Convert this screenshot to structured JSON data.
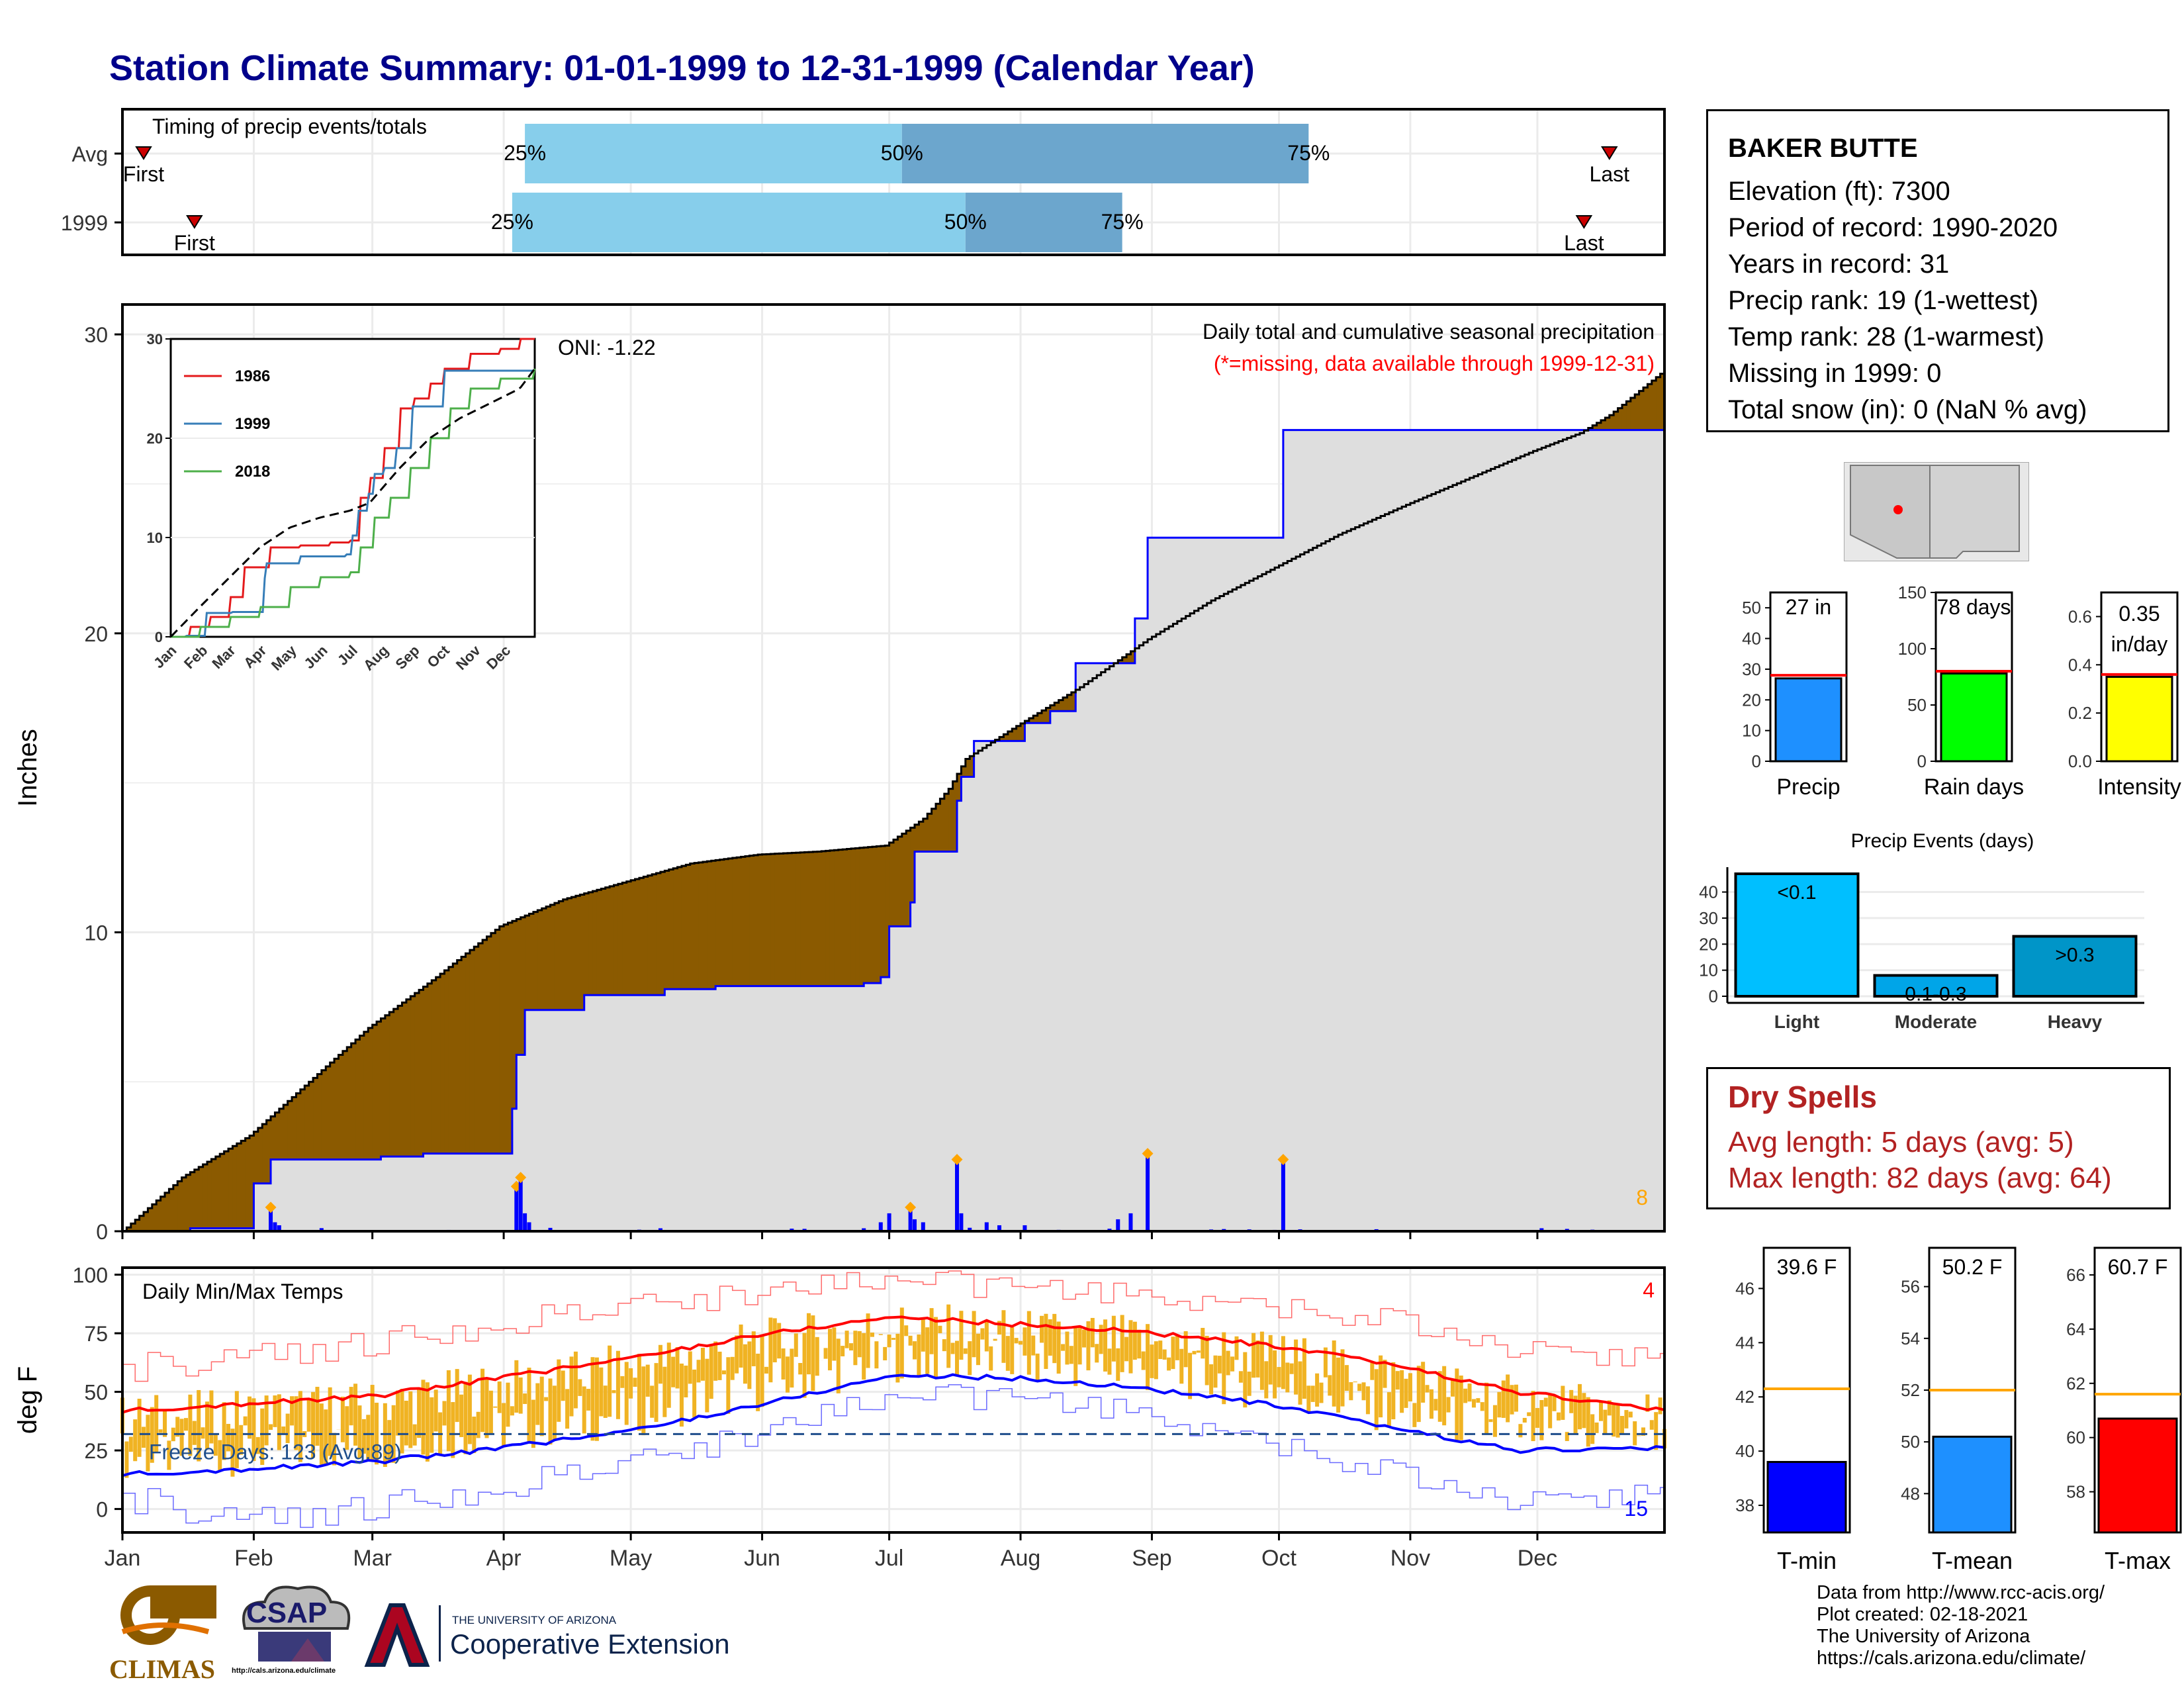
{
  "title": "Station Climate Summary: 01-01-1999 to 12-31-1999 (Calendar Year)",
  "timing_panel": {
    "title": "Timing of precip events/totals",
    "rows": [
      {
        "label": "Avg",
        "first_label": "First",
        "last_label": "Last",
        "first_doy": 6,
        "last_doy": 352,
        "p25_label": "25%",
        "p50_label": "50%",
        "p75_label": "75%",
        "p25_doy": 96,
        "p50_doy": 185,
        "p75_doy": 281
      },
      {
        "label": "1999",
        "first_label": "First",
        "last_label": "Last",
        "first_doy": 18,
        "last_doy": 346,
        "p25_label": "25%",
        "p50_label": "50%",
        "p75_label": "75%",
        "p25_doy": 93,
        "p50_doy": 200,
        "p75_doy": 237
      }
    ]
  },
  "precip_panel": {
    "ylabel": "Inches",
    "oni_label": "ONI: -1.22",
    "note_line1": "Daily total and cumulative seasonal precipitation",
    "note_line2": "(*=missing, data available through 1999-12-31)",
    "corner_count": "8",
    "yticks": [
      "0",
      "10",
      "20",
      "30"
    ]
  },
  "inset": {
    "yticks": [
      "0",
      "10",
      "20",
      "30"
    ],
    "xticks": [
      "Jan",
      "Feb",
      "Mar",
      "Apr",
      "May",
      "Jun",
      "Jul",
      "Aug",
      "Sep",
      "Oct",
      "Nov",
      "Dec"
    ],
    "legend": [
      {
        "label": "1986",
        "color": "#E41A1C"
      },
      {
        "label": "1999",
        "color": "#377EB8"
      },
      {
        "label": "2018",
        "color": "#4DAF4A"
      }
    ]
  },
  "temp_panel": {
    "ylabel": "deg F",
    "title": "Daily Min/Max Temps",
    "freeze_label": "Freeze Days: 123 (Avg:89)",
    "count_top": "4",
    "count_bottom": "15",
    "yticks": [
      "0",
      "25",
      "50",
      "75",
      "100"
    ]
  },
  "month_labels": [
    "Jan",
    "Feb",
    "Mar",
    "Apr",
    "May",
    "Jun",
    "Jul",
    "Aug",
    "Sep",
    "Oct",
    "Nov",
    "Dec"
  ],
  "station": {
    "name": "BAKER BUTTE",
    "lines": [
      "Elevation (ft): 7300",
      "Period of record: 1990-2020",
      "Years in record: 31",
      "Precip rank: 19 (1-wettest)",
      "Temp rank: 28 (1-warmest)",
      "Missing in 1999: 0",
      "Total snow (in): 0 (NaN % avg)"
    ]
  },
  "summary_bars": [
    {
      "label": "Precip",
      "value_text": "27 in",
      "value": 27,
      "avg": 28,
      "ymax": 55,
      "yticks": [
        "0",
        "10",
        "20",
        "30",
        "40",
        "50"
      ],
      "tickvals": [
        0,
        10,
        20,
        30,
        40,
        50
      ],
      "color": "#1E90FF"
    },
    {
      "label": "Rain days",
      "value_text": "78 days",
      "value": 78,
      "avg": 80,
      "ymax": 150,
      "yticks": [
        "0",
        "50",
        "100",
        "150"
      ],
      "tickvals": [
        0,
        50,
        100,
        150
      ],
      "color": "#00FF00"
    },
    {
      "label": "Intensity",
      "value_text": "0.35 in/day",
      "value": 0.35,
      "avg": 0.36,
      "ymax": 0.7,
      "yticks": [
        "0.0",
        "0.2",
        "0.4",
        "0.6"
      ],
      "tickvals": [
        0,
        0.2,
        0.4,
        0.6
      ],
      "color": "#FFFF00"
    }
  ],
  "precip_events": {
    "title": "Precip Events (days)",
    "yticks": [
      "0",
      "10",
      "20",
      "30",
      "40"
    ],
    "bars": [
      {
        "category": "Light",
        "label": "<0.1",
        "value": 47,
        "color": "#00BFFF"
      },
      {
        "category": "Moderate",
        "label": "0.1-0.3",
        "value": 8,
        "color": "#00A5E8"
      },
      {
        "category": "Heavy",
        "label": ">0.3",
        "value": 23,
        "color": "#0095C8"
      }
    ]
  },
  "dry_spells": {
    "title": "Dry Spells",
    "avg_line": "Avg length: 5 days (avg: 5)",
    "max_line": "Max length: 82 days (avg: 64)"
  },
  "temp_bars": [
    {
      "label": "T-min",
      "value_text": "39.6 F",
      "value": 39.6,
      "avg": 42.3,
      "ymin": 37,
      "ymax": 47.5,
      "yticks": [
        "38",
        "40",
        "42",
        "44",
        "46"
      ],
      "tickvals": [
        38,
        40,
        42,
        44,
        46
      ],
      "color": "#0000FF"
    },
    {
      "label": "T-mean",
      "value_text": "50.2 F",
      "value": 50.2,
      "avg": 52.0,
      "ymin": 46.5,
      "ymax": 57.5,
      "yticks": [
        "48",
        "50",
        "52",
        "54",
        "56"
      ],
      "tickvals": [
        48,
        50,
        52,
        54,
        56
      ],
      "color": "#1E90FF"
    },
    {
      "label": "T-max",
      "value_text": "60.7 F",
      "value": 60.7,
      "avg": 61.6,
      "ymin": 56.5,
      "ymax": 67,
      "yticks": [
        "58",
        "60",
        "62",
        "64",
        "66"
      ],
      "tickvals": [
        58,
        60,
        62,
        64,
        66
      ],
      "color": "#FF0000"
    }
  ],
  "logos": {
    "climas": "CLIMAS",
    "csap": "CSAP",
    "csap_url": "http://cals.arizona.edu/climate",
    "ua_small": "THE UNIVERSITY OF ARIZONA",
    "ua_big": "Cooperative Extension"
  },
  "credits": [
    "Data from http://www.rcc-acis.org/",
    "Plot created: 02-18-2021",
    "The University of Arizona",
    "https://cals.arizona.edu/climate/"
  ],
  "chart_data": [
    {
      "type": "area",
      "title": "Daily total and cumulative seasonal precipitation",
      "ylabel": "Inches",
      "ylim": [
        0,
        31
      ],
      "x": "day of year",
      "series": [
        {
          "name": "",
          "kind": "cumulative average",
          "x": [
            1,
            15,
            31,
            45,
            59,
            75,
            90,
            105,
            120,
            135,
            151,
            165,
            181,
            190,
            196,
            200,
            212,
            227,
            243,
            258,
            273,
            288,
            304,
            319,
            334,
            345,
            352,
            365
          ],
          "y": [
            0,
            1.8,
            3.2,
            5,
            6.8,
            8.5,
            10.2,
            11.1,
            11.7,
            12.3,
            12.6,
            12.7,
            12.9,
            13.8,
            14.8,
            15.8,
            16.9,
            18.2,
            19.8,
            21.1,
            22.2,
            23.3,
            24.3,
            25.2,
            26.1,
            26.7,
            27.3,
            28.8
          ]
        },
        {
          "name": "",
          "kind": "cumulative observed",
          "x": [
            1,
            17,
            32,
            36,
            62,
            72,
            93,
            94,
            96,
            110,
            129,
            141,
            176,
            180,
            182,
            187,
            188,
            198,
            199,
            202,
            214,
            220,
            226,
            240,
            243,
            275,
            342,
            365
          ],
          "y": [
            0,
            0.1,
            1.6,
            2.4,
            2.5,
            2.6,
            4.1,
            5.9,
            7.4,
            7.9,
            8.1,
            8.2,
            8.3,
            8.5,
            10.2,
            11.0,
            12.7,
            14.4,
            15.2,
            16.4,
            17.0,
            17.4,
            19.0,
            20.5,
            23.2,
            26.8,
            26.8,
            26.8
          ]
        },
        {
          "name": "",
          "kind": "daily totals",
          "x": [
            36,
            37,
            38,
            94,
            95,
            96,
            97,
            128,
            176,
            180,
            182,
            187,
            188,
            190,
            198,
            199,
            205,
            208,
            214,
            236,
            239,
            243,
            275
          ],
          "y": [
            0.8,
            0.3,
            0.2,
            1.5,
            1.8,
            0.6,
            0.3,
            0.1,
            0.1,
            0.3,
            0.6,
            0.8,
            0.4,
            0.3,
            2.4,
            0.6,
            0.3,
            0.2,
            0.2,
            0.4,
            0.6,
            2.6,
            2.4
          ]
        }
      ]
    },
    {
      "type": "line",
      "title": "",
      "ylim": [
        0,
        30
      ],
      "xticks": [
        "Jan",
        "Feb",
        "Mar",
        "Apr",
        "May",
        "Jun",
        "Jul",
        "Aug",
        "Sep",
        "Oct",
        "Nov",
        "Dec"
      ],
      "series": [
        {
          "name": "1986",
          "x": [
            1,
            20,
            40,
            60,
            75,
            100,
            130,
            160,
            180,
            190,
            200,
            215,
            230,
            245,
            260,
            275,
            300,
            330,
            350,
            365
          ],
          "y": [
            0,
            1,
            2,
            4,
            7,
            9,
            9.2,
            9.5,
            9.7,
            14,
            16,
            19,
            23,
            24,
            25.5,
            27,
            28.5,
            29,
            30,
            31
          ]
        },
        {
          "name": "1999",
          "x": [
            1,
            17,
            36,
            62,
            94,
            96,
            130,
            176,
            182,
            188,
            198,
            205,
            214,
            226,
            243,
            275,
            342,
            365
          ],
          "y": [
            0,
            0.1,
            2.4,
            2.5,
            5.9,
            7.4,
            8.1,
            8.3,
            10.2,
            12.7,
            14.4,
            16.4,
            17,
            19,
            23.2,
            26.8,
            26.8,
            26.8
          ]
        },
        {
          "name": "2018",
          "x": [
            1,
            30,
            60,
            90,
            120,
            150,
            180,
            190,
            205,
            220,
            240,
            260,
            280,
            300,
            330,
            365
          ],
          "y": [
            0,
            1,
            2,
            3,
            5,
            6,
            6.5,
            9,
            12,
            14,
            17,
            20,
            23,
            25,
            26,
            27
          ]
        },
        {
          "name": "",
          "kind": "average",
          "x": [
            1,
            30,
            60,
            90,
            120,
            150,
            180,
            200,
            230,
            260,
            290,
            320,
            350,
            365
          ],
          "y": [
            0,
            3,
            6,
            9,
            11,
            12,
            12.7,
            13.5,
            17,
            20,
            22,
            23.5,
            25,
            27
          ]
        }
      ]
    },
    {
      "type": "line",
      "title": "Daily Min/Max Temps",
      "ylabel": "deg F",
      "ylim": [
        -10,
        103
      ],
      "freeze_threshold": 32,
      "series": [
        {
          "name": "",
          "kind": "avg max",
          "x": [
            1,
            30,
            60,
            90,
            120,
            150,
            183,
            210,
            240,
            270,
            300,
            330,
            365
          ],
          "y": [
            42,
            45,
            48,
            56,
            64,
            74,
            82,
            79,
            76,
            70,
            62,
            50,
            42
          ]
        },
        {
          "name": "",
          "kind": "avg min",
          "x": [
            1,
            30,
            60,
            90,
            120,
            150,
            183,
            210,
            240,
            270,
            300,
            330,
            365
          ],
          "y": [
            15,
            17,
            20,
            26,
            33,
            44,
            57,
            56,
            52,
            45,
            35,
            25,
            26
          ]
        },
        {
          "name": "",
          "kind": "record max",
          "x": [
            1,
            30,
            60,
            90,
            120,
            150,
            183,
            210,
            240,
            270,
            300,
            330,
            365
          ],
          "y": [
            60,
            65,
            70,
            80,
            85,
            92,
            98,
            95,
            92,
            88,
            80,
            70,
            62
          ]
        },
        {
          "name": "",
          "kind": "record min",
          "x": [
            1,
            30,
            60,
            90,
            120,
            150,
            183,
            210,
            240,
            270,
            300,
            330,
            365
          ],
          "y": [
            5,
            -5,
            0,
            10,
            18,
            32,
            48,
            48,
            42,
            30,
            15,
            5,
            5
          ]
        }
      ]
    },
    {
      "type": "bar",
      "title": "Precip Events (days)",
      "categories": [
        "Light",
        "Moderate",
        "Heavy"
      ],
      "values": [
        47,
        8,
        23
      ]
    },
    {
      "type": "bar",
      "categories": [
        "Precip",
        "Rain days",
        "Intensity"
      ],
      "values": [
        27,
        78,
        0.35
      ]
    },
    {
      "type": "bar",
      "categories": [
        "T-min",
        "T-mean",
        "T-max"
      ],
      "values": [
        39.6,
        50.2,
        60.7
      ]
    }
  ]
}
